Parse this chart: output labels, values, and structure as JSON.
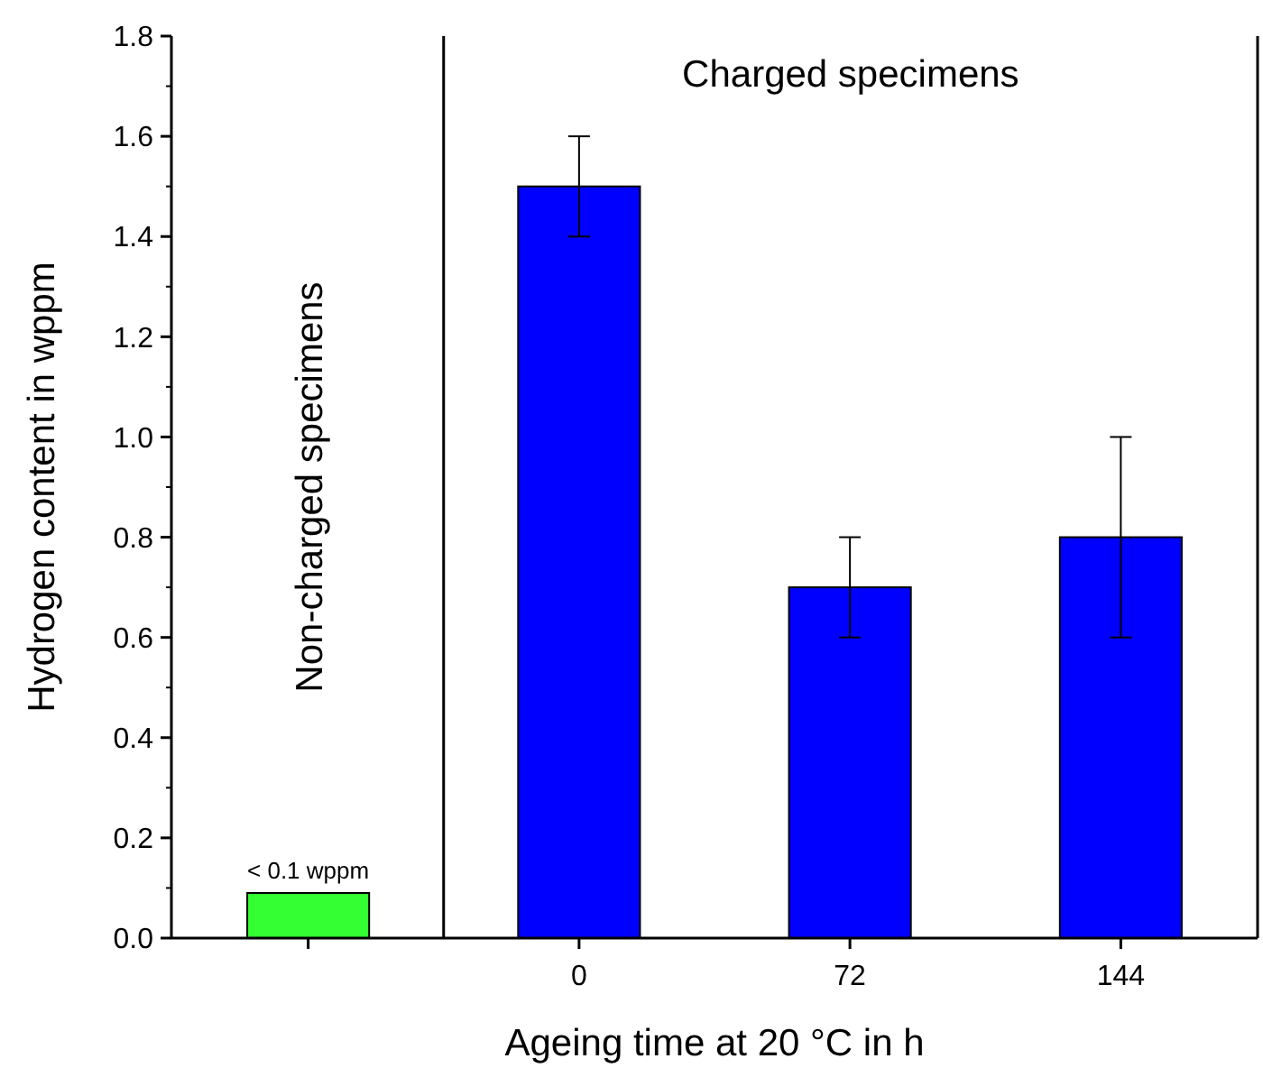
{
  "chart_data": {
    "type": "bar",
    "xlabel": "Ageing time at 20 °C in h",
    "ylabel": "Hydrogen content in wppm",
    "categories": [
      null,
      "0",
      "72",
      "144"
    ],
    "values": [
      0.09,
      1.5,
      0.7,
      0.8
    ],
    "colors": [
      "#33ff33",
      "#0000ff",
      "#0000ff",
      "#0000ff"
    ],
    "errors": [
      null,
      0.1,
      0.1,
      0.2
    ],
    "value_labels": [
      "< 0.1 wppm",
      null,
      null,
      null
    ],
    "ylim": [
      0,
      1.8
    ],
    "yticks": [
      {
        "value": 0,
        "label": "0.0"
      },
      0.2,
      0.4,
      0.6,
      0.8,
      {
        "value": 1,
        "label": "1.0"
      },
      1.2,
      1.4,
      1.6,
      1.8
    ],
    "annotations": [
      "Non-charged specimens",
      "Charged specimens"
    ],
    "grid": false
  }
}
